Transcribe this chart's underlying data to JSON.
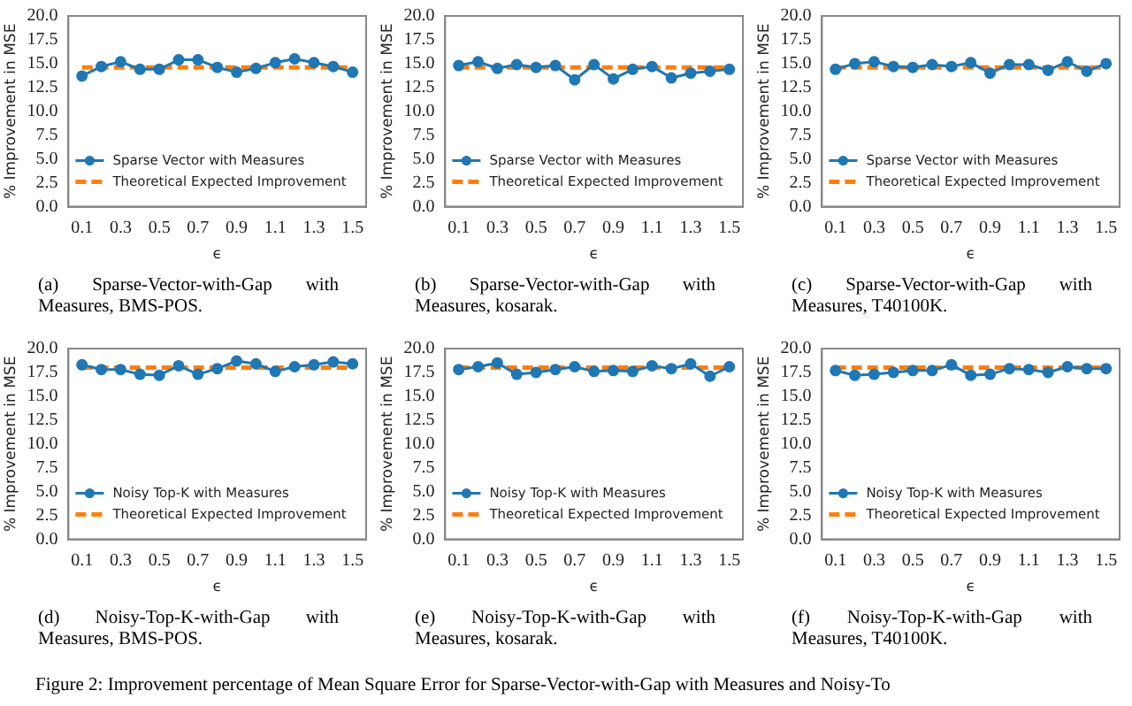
{
  "chart_data": [
    {
      "type": "line",
      "x": [
        0.1,
        0.2,
        0.3,
        0.4,
        0.5,
        0.6,
        0.7,
        0.8,
        0.9,
        1.0,
        1.1,
        1.2,
        1.3,
        1.4,
        1.5
      ],
      "xlim": [
        0.03,
        1.57
      ],
      "xticks": [
        0.1,
        0.3,
        0.5,
        0.7,
        0.9,
        1.1,
        1.3,
        1.5
      ],
      "ylim": [
        0,
        20
      ],
      "yticks": [
        {
          "value": 0,
          "label": "0.0"
        },
        2.5,
        {
          "value": 5,
          "label": "5.0"
        },
        7.5,
        {
          "value": 10,
          "label": "10.0"
        },
        12.5,
        {
          "value": 15,
          "label": "15.0"
        },
        17.5,
        {
          "value": 20,
          "label": "20.0"
        }
      ],
      "xlabel": "ϵ",
      "ylabel": "% Improvement in MSE",
      "legend": "bottom left",
      "annotations": [
        "(a) Sparse-Vector-with-Gap with Measures, BMS-POS."
      ],
      "series": [
        {
          "type": "line",
          "name": "Sparse Vector with Measures",
          "color": "#1f77b4",
          "marker": "circle",
          "line_style": "solid",
          "values": [
            13.7,
            14.7,
            15.2,
            14.4,
            14.4,
            15.4,
            15.4,
            14.6,
            14.1,
            14.5,
            15.1,
            15.5,
            15.1,
            14.7,
            14.1
          ]
        },
        {
          "type": "line",
          "name": "Theoretical Expected Improvement",
          "color": "#ff7f0e",
          "marker": "none",
          "line_style": "dashed",
          "values": [
            14.6,
            14.6,
            14.6,
            14.6,
            14.6,
            14.6,
            14.6,
            14.6,
            14.6,
            14.6,
            14.6,
            14.6,
            14.6,
            14.6,
            14.6
          ]
        }
      ]
    },
    {
      "type": "line",
      "x": [
        0.1,
        0.2,
        0.3,
        0.4,
        0.5,
        0.6,
        0.7,
        0.8,
        0.9,
        1.0,
        1.1,
        1.2,
        1.3,
        1.4,
        1.5
      ],
      "xlim": [
        0.03,
        1.57
      ],
      "xticks": [
        0.1,
        0.3,
        0.5,
        0.7,
        0.9,
        1.1,
        1.3,
        1.5
      ],
      "ylim": [
        0,
        20
      ],
      "yticks": [
        {
          "value": 0,
          "label": "0.0"
        },
        2.5,
        {
          "value": 5,
          "label": "5.0"
        },
        7.5,
        {
          "value": 10,
          "label": "10.0"
        },
        12.5,
        {
          "value": 15,
          "label": "15.0"
        },
        17.5,
        {
          "value": 20,
          "label": "20.0"
        }
      ],
      "xlabel": "ϵ",
      "ylabel": "% Improvement in MSE",
      "legend": "bottom left",
      "annotations": [
        "(b) Sparse-Vector-with-Gap with Measures, kosarak."
      ],
      "series": [
        {
          "type": "line",
          "name": "Sparse Vector with Measures",
          "color": "#1f77b4",
          "marker": "circle",
          "line_style": "solid",
          "values": [
            14.8,
            15.2,
            14.5,
            14.9,
            14.6,
            14.8,
            13.3,
            14.9,
            13.4,
            14.4,
            14.7,
            13.5,
            14.0,
            14.2,
            14.4
          ]
        },
        {
          "type": "line",
          "name": "Theoretical Expected Improvement",
          "color": "#ff7f0e",
          "marker": "none",
          "line_style": "dashed",
          "values": [
            14.6,
            14.6,
            14.6,
            14.6,
            14.6,
            14.6,
            14.6,
            14.6,
            14.6,
            14.6,
            14.6,
            14.6,
            14.6,
            14.6,
            14.6
          ]
        }
      ]
    },
    {
      "type": "line",
      "x": [
        0.1,
        0.2,
        0.3,
        0.4,
        0.5,
        0.6,
        0.7,
        0.8,
        0.9,
        1.0,
        1.1,
        1.2,
        1.3,
        1.4,
        1.5
      ],
      "xlim": [
        0.03,
        1.57
      ],
      "xticks": [
        0.1,
        0.3,
        0.5,
        0.7,
        0.9,
        1.1,
        1.3,
        1.5
      ],
      "ylim": [
        0,
        20
      ],
      "yticks": [
        {
          "value": 0,
          "label": "0.0"
        },
        2.5,
        {
          "value": 5,
          "label": "5.0"
        },
        7.5,
        {
          "value": 10,
          "label": "10.0"
        },
        12.5,
        {
          "value": 15,
          "label": "15.0"
        },
        17.5,
        {
          "value": 20,
          "label": "20.0"
        }
      ],
      "xlabel": "ϵ",
      "ylabel": "% Improvement in MSE",
      "legend": "bottom left",
      "annotations": [
        "(c) Sparse-Vector-with-Gap with Measures, T40100K."
      ],
      "series": [
        {
          "type": "line",
          "name": "Sparse Vector with Measures",
          "color": "#1f77b4",
          "marker": "circle",
          "line_style": "solid",
          "values": [
            14.4,
            15.0,
            15.2,
            14.7,
            14.6,
            14.9,
            14.7,
            15.1,
            14.0,
            14.9,
            14.9,
            14.3,
            15.2,
            14.2,
            15.0
          ]
        },
        {
          "type": "line",
          "name": "Theoretical Expected Improvement",
          "color": "#ff7f0e",
          "marker": "none",
          "line_style": "dashed",
          "values": [
            14.6,
            14.6,
            14.6,
            14.6,
            14.6,
            14.6,
            14.6,
            14.6,
            14.6,
            14.6,
            14.6,
            14.6,
            14.6,
            14.6,
            14.6
          ]
        }
      ]
    },
    {
      "type": "line",
      "x": [
        0.1,
        0.2,
        0.3,
        0.4,
        0.5,
        0.6,
        0.7,
        0.8,
        0.9,
        1.0,
        1.1,
        1.2,
        1.3,
        1.4,
        1.5
      ],
      "xlim": [
        0.03,
        1.57
      ],
      "xticks": [
        0.1,
        0.3,
        0.5,
        0.7,
        0.9,
        1.1,
        1.3,
        1.5
      ],
      "ylim": [
        0,
        20
      ],
      "yticks": [
        {
          "value": 0,
          "label": "0.0"
        },
        2.5,
        {
          "value": 5,
          "label": "5.0"
        },
        7.5,
        {
          "value": 10,
          "label": "10.0"
        },
        12.5,
        {
          "value": 15,
          "label": "15.0"
        },
        17.5,
        {
          "value": 20,
          "label": "20.0"
        }
      ],
      "xlabel": "ϵ",
      "ylabel": "% Improvement in MSE",
      "legend": "bottom left",
      "annotations": [
        "(d) Noisy-Top-K-with-Gap with Measures, BMS-POS.",
        "Figure 2: Improvement percentage of Mean Square Error for Sparse-Vector-with-Gap with Measures and Noisy-To"
      ],
      "series": [
        {
          "type": "line",
          "name": "Noisy Top-K with Measures",
          "color": "#1f77b4",
          "marker": "circle",
          "line_style": "solid",
          "values": [
            18.3,
            17.8,
            17.8,
            17.3,
            17.2,
            18.2,
            17.3,
            17.9,
            18.7,
            18.4,
            17.6,
            18.1,
            18.3,
            18.6,
            18.4
          ]
        },
        {
          "type": "line",
          "name": "Theoretical Expected Improvement",
          "color": "#ff7f0e",
          "marker": "none",
          "line_style": "dashed",
          "values": [
            18.0,
            18.0,
            18.0,
            18.0,
            18.0,
            18.0,
            18.0,
            18.0,
            18.0,
            18.0,
            18.0,
            18.0,
            18.0,
            18.0,
            18.0
          ]
        }
      ]
    },
    {
      "type": "line",
      "x": [
        0.1,
        0.2,
        0.3,
        0.4,
        0.5,
        0.6,
        0.7,
        0.8,
        0.9,
        1.0,
        1.1,
        1.2,
        1.3,
        1.4,
        1.5
      ],
      "xlim": [
        0.03,
        1.57
      ],
      "xticks": [
        0.1,
        0.3,
        0.5,
        0.7,
        0.9,
        1.1,
        1.3,
        1.5
      ],
      "ylim": [
        0,
        20
      ],
      "yticks": [
        {
          "value": 0,
          "label": "0.0"
        },
        2.5,
        {
          "value": 5,
          "label": "5.0"
        },
        7.5,
        {
          "value": 10,
          "label": "10.0"
        },
        12.5,
        {
          "value": 15,
          "label": "15.0"
        },
        17.5,
        {
          "value": 20,
          "label": "20.0"
        }
      ],
      "xlabel": "ϵ",
      "ylabel": "% Improvement in MSE",
      "legend": "bottom left",
      "annotations": [
        "(e) Noisy-Top-K-with-Gap with Measures, kosarak."
      ],
      "series": [
        {
          "type": "line",
          "name": "Noisy Top-K with Measures",
          "color": "#1f77b4",
          "marker": "circle",
          "line_style": "solid",
          "values": [
            17.8,
            18.1,
            18.5,
            17.3,
            17.5,
            17.8,
            18.1,
            17.6,
            17.7,
            17.6,
            18.2,
            17.9,
            18.4,
            17.1,
            18.1
          ]
        },
        {
          "type": "line",
          "name": "Theoretical Expected Improvement",
          "color": "#ff7f0e",
          "marker": "none",
          "line_style": "dashed",
          "values": [
            18.0,
            18.0,
            18.0,
            18.0,
            18.0,
            18.0,
            18.0,
            18.0,
            18.0,
            18.0,
            18.0,
            18.0,
            18.0,
            18.0,
            18.0
          ]
        }
      ]
    },
    {
      "type": "line",
      "x": [
        0.1,
        0.2,
        0.3,
        0.4,
        0.5,
        0.6,
        0.7,
        0.8,
        0.9,
        1.0,
        1.1,
        1.2,
        1.3,
        1.4,
        1.5
      ],
      "xlim": [
        0.03,
        1.57
      ],
      "xticks": [
        0.1,
        0.3,
        0.5,
        0.7,
        0.9,
        1.1,
        1.3,
        1.5
      ],
      "ylim": [
        0,
        20
      ],
      "yticks": [
        {
          "value": 0,
          "label": "0.0"
        },
        2.5,
        {
          "value": 5,
          "label": "5.0"
        },
        7.5,
        {
          "value": 10,
          "label": "10.0"
        },
        12.5,
        {
          "value": 15,
          "label": "15.0"
        },
        17.5,
        {
          "value": 20,
          "label": "20.0"
        }
      ],
      "xlabel": "ϵ",
      "ylabel": "% Improvement in MSE",
      "legend": "bottom left",
      "annotations": [
        "(f) Noisy-Top-K-with-Gap with Measures, T40100K."
      ],
      "series": [
        {
          "type": "line",
          "name": "Noisy Top-K with Measures",
          "color": "#1f77b4",
          "marker": "circle",
          "line_style": "solid",
          "values": [
            17.7,
            17.2,
            17.3,
            17.5,
            17.7,
            17.7,
            18.3,
            17.2,
            17.3,
            17.9,
            17.8,
            17.5,
            18.1,
            17.9,
            17.9
          ]
        },
        {
          "type": "line",
          "name": "Theoretical Expected Improvement",
          "color": "#ff7f0e",
          "marker": "none",
          "line_style": "dashed",
          "values": [
            18.0,
            18.0,
            18.0,
            18.0,
            18.0,
            18.0,
            18.0,
            18.0,
            18.0,
            18.0,
            18.0,
            18.0,
            18.0,
            18.0,
            18.0
          ]
        }
      ]
    }
  ]
}
